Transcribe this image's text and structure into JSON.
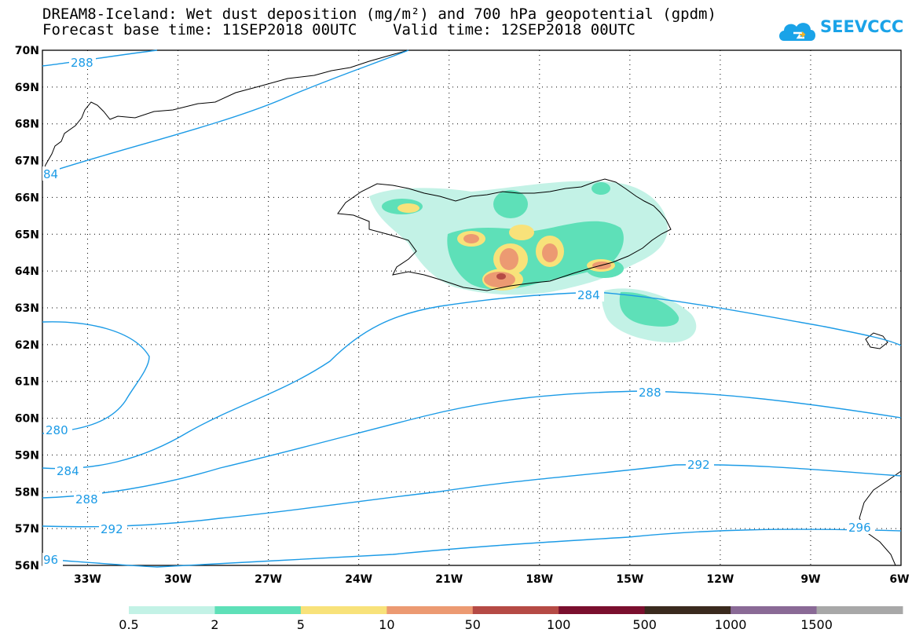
{
  "title_line1": "DREAM8-Iceland: Wet dust deposition (mg/m²) and 700 hPa geopotential (gpdm)",
  "title_line2": "Forecast base time: 11SEP2018 00UTC    Valid time: 12SEP2018 00UTC",
  "logo_text": "SEEVCCC",
  "map": {
    "lat_labels": [
      "70N",
      "69N",
      "68N",
      "67N",
      "66N",
      "65N",
      "64N",
      "63N",
      "62N",
      "61N",
      "60N",
      "59N",
      "58N",
      "57N",
      "56N"
    ],
    "lon_labels": [
      "33W",
      "30W",
      "27W",
      "24W",
      "21W",
      "18W",
      "15W",
      "12W",
      "9W",
      "6W"
    ],
    "lat_range": [
      56,
      70
    ],
    "lon_range": [
      -34.5,
      -6
    ],
    "grid": "dotted"
  },
  "contours": [
    {
      "value": 280,
      "label": "280"
    },
    {
      "value": 284,
      "label": "284"
    },
    {
      "value": 288,
      "label": "288"
    },
    {
      "value": 292,
      "label": "292"
    },
    {
      "value": 296,
      "label": "296"
    }
  ],
  "contour_labels_shown": [
    "288",
    "84",
    "280",
    "284",
    "288",
    "292",
    "96",
    "284",
    "288",
    "292",
    "296"
  ],
  "legend": {
    "labels": [
      "0.5",
      "2",
      "5",
      "10",
      "50",
      "100",
      "500",
      "1000",
      "1500"
    ],
    "colors": [
      "#c3f2e6",
      "#5ee0b8",
      "#f8e27a",
      "#ec9a72",
      "#b54a45",
      "#7a0f2e",
      "#3a2a1e",
      "#8a6a96",
      "#a8a8a8"
    ]
  },
  "colors": {
    "contour": "#1c9be6",
    "coastline": "#000000"
  }
}
